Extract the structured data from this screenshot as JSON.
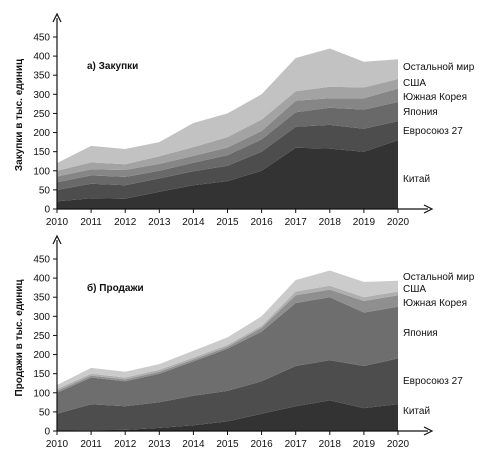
{
  "chart_data": [
    {
      "type": "area",
      "stacked": true,
      "title": "а) Закупки",
      "ylabel": "Закупки в тыс. единиц",
      "xlabel": "",
      "ylim": [
        0,
        450
      ],
      "y_ticks": [
        "0",
        "50",
        "100",
        "150",
        "200",
        "250",
        "300",
        "350",
        "400",
        "450"
      ],
      "x": [
        "2010",
        "2011",
        "2012",
        "2013",
        "2014",
        "2015",
        "2016",
        "2017",
        "2018",
        "2019",
        "2020"
      ],
      "series": [
        {
          "name": "Китай",
          "values": [
            20,
            28,
            27,
            45,
            62,
            73,
            100,
            160,
            158,
            150,
            180
          ],
          "color": "#333333"
        },
        {
          "name": "Евросоюз 27",
          "values": [
            30,
            38,
            35,
            35,
            37,
            40,
            50,
            55,
            62,
            60,
            50
          ],
          "color": "#4d4d4d"
        },
        {
          "name": "Япония",
          "values": [
            20,
            22,
            22,
            20,
            22,
            28,
            32,
            38,
            45,
            50,
            50
          ],
          "color": "#696969"
        },
        {
          "name": "Южная Корея",
          "values": [
            15,
            16,
            18,
            18,
            18,
            20,
            22,
            30,
            25,
            30,
            35
          ],
          "color": "#868686"
        },
        {
          "name": "США",
          "values": [
            15,
            18,
            15,
            20,
            23,
            27,
            30,
            25,
            30,
            28,
            25
          ],
          "color": "#a3a3a3"
        },
        {
          "name": "Остальной мир",
          "values": [
            20,
            43,
            40,
            37,
            63,
            62,
            66,
            87,
            100,
            67,
            52
          ],
          "color": "#c2c2c2"
        }
      ],
      "grid": false,
      "legend_placement": "right"
    },
    {
      "type": "area",
      "stacked": true,
      "title": "б) Продажи",
      "ylabel": "Продажи в тыс. единиц",
      "xlabel": "",
      "ylim": [
        0,
        450
      ],
      "y_ticks": [
        "0",
        "50",
        "100",
        "150",
        "200",
        "250",
        "300",
        "350",
        "400",
        "450"
      ],
      "x": [
        "2010",
        "2011",
        "2012",
        "2013",
        "2014",
        "2015",
        "2016",
        "2017",
        "2018",
        "2019",
        "2020"
      ],
      "series": [
        {
          "name": "Китай",
          "values": [
            1,
            2,
            3,
            8,
            15,
            25,
            45,
            65,
            80,
            60,
            70
          ],
          "color": "#333333"
        },
        {
          "name": "Евросоюз 27",
          "values": [
            44,
            68,
            62,
            67,
            77,
            80,
            85,
            105,
            105,
            110,
            120
          ],
          "color": "#4d4d4d"
        },
        {
          "name": "Япония",
          "values": [
            55,
            70,
            65,
            75,
            90,
            110,
            130,
            165,
            165,
            140,
            135
          ],
          "color": "#6e6e6e"
        },
        {
          "name": "Южная Корея",
          "values": [
            5,
            5,
            5,
            5,
            5,
            5,
            10,
            20,
            20,
            30,
            30
          ],
          "color": "#8f8f8f"
        },
        {
          "name": "США",
          "values": [
            5,
            5,
            5,
            5,
            5,
            5,
            5,
            10,
            10,
            10,
            10
          ],
          "color": "#afafaf"
        },
        {
          "name": "Остальной мир",
          "values": [
            10,
            15,
            15,
            15,
            18,
            20,
            25,
            30,
            40,
            40,
            28
          ],
          "color": "#cbcbcb"
        }
      ],
      "grid": false,
      "legend_placement": "right"
    }
  ]
}
